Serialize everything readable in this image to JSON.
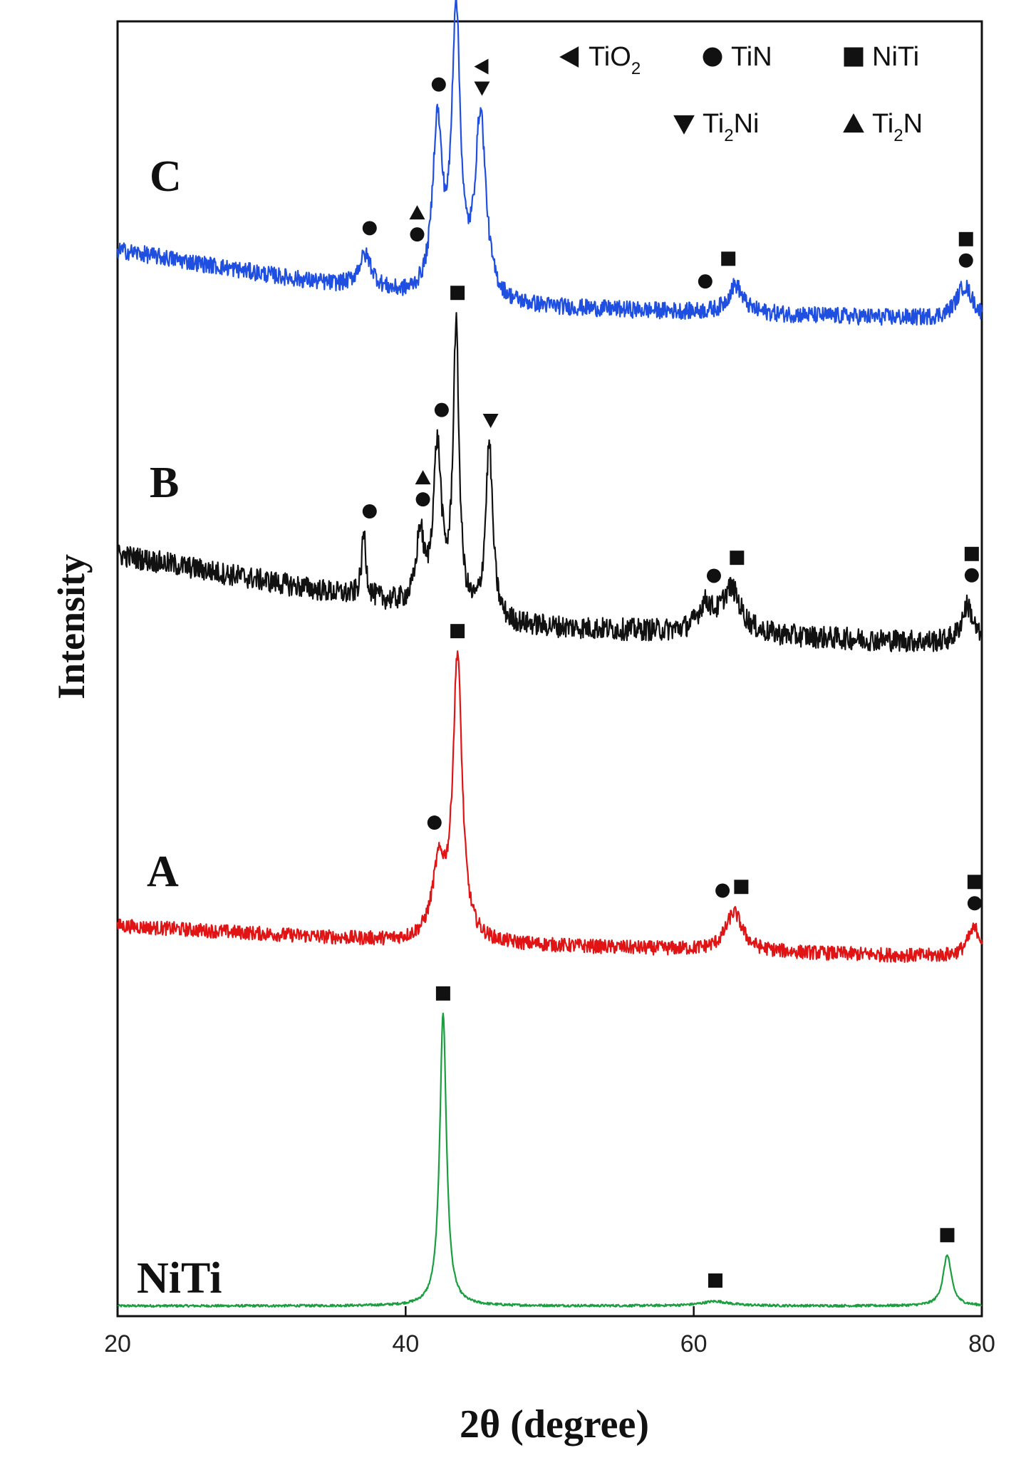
{
  "chart_data": {
    "type": "line",
    "title": "",
    "xlabel": "2θ (degree)",
    "ylabel": "Intensity",
    "xlim": [
      20,
      80
    ],
    "xticks": [
      "20",
      "40",
      "60",
      "80"
    ],
    "grid": false,
    "legend_placement": "top-right",
    "legend": [
      {
        "symbol": "triangle-left",
        "name": "TiO",
        "sub": "2"
      },
      {
        "symbol": "circle",
        "name": "TiN",
        "sub": ""
      },
      {
        "symbol": "square",
        "name": "NiTi",
        "sub": ""
      },
      {
        "symbol": "triangle-down",
        "name": "Ti",
        "sub": "2",
        "suffix": "Ni"
      },
      {
        "symbol": "triangle-up",
        "name": "Ti",
        "sub": "2",
        "suffix": "N"
      }
    ],
    "series": [
      {
        "name": "NiTi",
        "color": "#1a9e3f",
        "baseline": 0.02,
        "background": [
          [
            20,
            0.0
          ],
          [
            80,
            0.0
          ]
        ],
        "noise": 0.004,
        "peaks": [
          {
            "x": 42.6,
            "height": 0.98,
            "width": 0.28
          },
          {
            "x": 61.5,
            "height": 0.015,
            "width": 1.2
          },
          {
            "x": 77.6,
            "height": 0.17,
            "width": 0.35
          }
        ],
        "markers": [
          {
            "x": 42.6,
            "symbols": [
              "square"
            ]
          },
          {
            "x": 61.5,
            "symbols": [
              "square"
            ]
          },
          {
            "x": 77.6,
            "symbols": [
              "square"
            ]
          }
        ]
      },
      {
        "name": "A",
        "color": "#e01414",
        "baseline": 0.0,
        "background": [
          [
            20,
            0.1
          ],
          [
            40,
            0.05
          ],
          [
            80,
            0.0
          ]
        ],
        "noise": 0.022,
        "peaks": [
          {
            "x": 42.3,
            "height": 0.22,
            "width": 0.55
          },
          {
            "x": 43.6,
            "height": 0.88,
            "width": 0.38
          },
          {
            "x": 62.8,
            "height": 0.12,
            "width": 0.7
          },
          {
            "x": 79.5,
            "height": 0.09,
            "width": 0.6
          }
        ],
        "markers": [
          {
            "x": 42.0,
            "symbols": [
              "circle"
            ]
          },
          {
            "x": 62.0,
            "symbols": [
              "circle"
            ]
          },
          {
            "x": 63.3,
            "symbols": [
              "square"
            ]
          },
          {
            "x": 43.6,
            "symbols": [
              "square"
            ]
          },
          {
            "x": 79.5,
            "symbols": [
              "square",
              "circle"
            ]
          }
        ]
      },
      {
        "name": "B",
        "color": "#111111",
        "baseline": 0.0,
        "background": [
          [
            20,
            0.28
          ],
          [
            40,
            0.12
          ],
          [
            46,
            0.06
          ],
          [
            80,
            0.0
          ]
        ],
        "noise": 0.035,
        "peaks": [
          {
            "x": 37.1,
            "height": 0.2,
            "width": 0.18
          },
          {
            "x": 41.0,
            "height": 0.22,
            "width": 0.3
          },
          {
            "x": 42.2,
            "height": 0.5,
            "width": 0.35
          },
          {
            "x": 43.5,
            "height": 0.88,
            "width": 0.25
          },
          {
            "x": 45.8,
            "height": 0.55,
            "width": 0.3
          },
          {
            "x": 60.8,
            "height": 0.08,
            "width": 0.6
          },
          {
            "x": 62.6,
            "height": 0.14,
            "width": 0.8
          },
          {
            "x": 79.0,
            "height": 0.12,
            "width": 0.5
          }
        ],
        "markers": [
          {
            "x": 37.5,
            "symbols": [
              "circle"
            ]
          },
          {
            "x": 41.2,
            "symbols": [
              "triangle-up",
              "circle"
            ]
          },
          {
            "x": 42.5,
            "symbols": [
              "circle"
            ]
          },
          {
            "x": 43.6,
            "symbols": [
              "square"
            ]
          },
          {
            "x": 45.9,
            "symbols": [
              "triangle-down"
            ]
          },
          {
            "x": 61.4,
            "symbols": [
              "circle"
            ]
          },
          {
            "x": 63.0,
            "symbols": [
              "square"
            ]
          },
          {
            "x": 79.3,
            "symbols": [
              "square",
              "circle"
            ]
          }
        ]
      },
      {
        "name": "C",
        "color": "#1f4fe0",
        "baseline": 0.0,
        "background": [
          [
            20,
            0.25
          ],
          [
            40,
            0.08
          ],
          [
            46,
            0.05
          ],
          [
            80,
            0.0
          ]
        ],
        "noise": 0.03,
        "peaks": [
          {
            "x": 37.2,
            "height": 0.12,
            "width": 0.6
          },
          {
            "x": 42.2,
            "height": 0.6,
            "width": 0.4
          },
          {
            "x": 43.5,
            "height": 1.0,
            "width": 0.35
          },
          {
            "x": 45.2,
            "height": 0.65,
            "width": 0.45
          },
          {
            "x": 62.9,
            "height": 0.1,
            "width": 0.6
          },
          {
            "x": 78.8,
            "height": 0.12,
            "width": 0.7
          }
        ],
        "markers": [
          {
            "x": 37.5,
            "symbols": [
              "circle"
            ]
          },
          {
            "x": 40.8,
            "symbols": [
              "triangle-up",
              "circle"
            ]
          },
          {
            "x": 42.3,
            "symbols": [
              "circle"
            ]
          },
          {
            "x": 43.8,
            "symbols": [
              "square"
            ]
          },
          {
            "x": 45.3,
            "symbols": [
              "triangle-left",
              "triangle-down"
            ]
          },
          {
            "x": 60.8,
            "symbols": [
              "circle"
            ]
          },
          {
            "x": 62.4,
            "symbols": [
              "square"
            ]
          },
          {
            "x": 78.9,
            "symbols": [
              "square",
              "circle"
            ]
          }
        ]
      }
    ]
  }
}
